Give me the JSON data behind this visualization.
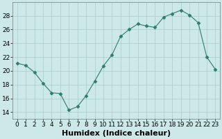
{
  "x": [
    0,
    1,
    2,
    3,
    4,
    5,
    6,
    7,
    8,
    9,
    10,
    11,
    12,
    13,
    14,
    15,
    16,
    17,
    18,
    19,
    20,
    21,
    22,
    23
  ],
  "y": [
    21.1,
    20.8,
    19.8,
    18.2,
    16.8,
    16.7,
    14.3,
    14.8,
    16.4,
    18.5,
    20.7,
    22.3,
    25.0,
    26.0,
    26.8,
    26.5,
    26.3,
    27.8,
    28.3,
    28.8,
    28.1,
    27.0,
    22.0,
    20.2
  ],
  "line_color": "#2d7d6e",
  "marker": "D",
  "marker_size": 2.5,
  "bg_color": "#cce8e8",
  "grid_color": "#aacccc",
  "xlabel": "Humidex (Indice chaleur)",
  "ylim": [
    13,
    30
  ],
  "xlim": [
    -0.5,
    23.5
  ],
  "yticks": [
    14,
    16,
    18,
    20,
    22,
    24,
    26,
    28
  ],
  "xtick_labels": [
    "0",
    "1",
    "2",
    "3",
    "4",
    "5",
    "6",
    "7",
    "8",
    "9",
    "10",
    "11",
    "12",
    "13",
    "14",
    "15",
    "16",
    "17",
    "18",
    "19",
    "20",
    "21",
    "22",
    "23"
  ],
  "tick_fontsize": 6.5,
  "xlabel_fontsize": 8
}
